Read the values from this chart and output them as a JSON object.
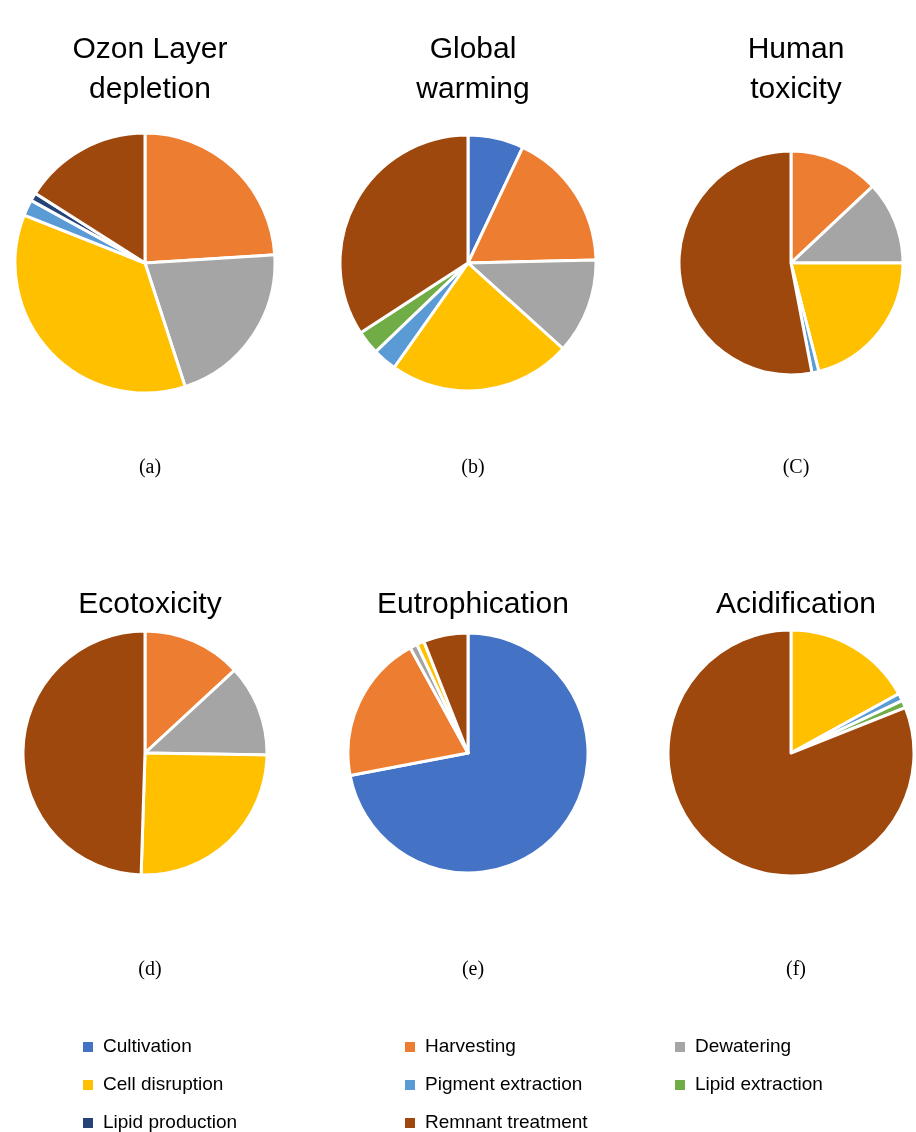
{
  "chart_data": [
    {
      "type": "pie",
      "title": "Ozon Layer depletion",
      "annotations": [
        "(a)"
      ],
      "categories": [
        "Cultivation",
        "Harvesting",
        "Dewatering",
        "Cell disruption",
        "Pigment extraction",
        "Lipid extraction",
        "Lipid production",
        "Remnant treatment"
      ],
      "values": [
        0,
        24,
        21,
        36,
        2,
        0,
        1,
        16
      ],
      "colors": [
        "#4472c4",
        "#ed7d31",
        "#a5a5a5",
        "#ffc000",
        "#5b9bd5",
        "#70ad47",
        "#264478",
        "#9e480e"
      ],
      "legend": "bottom"
    },
    {
      "type": "pie",
      "title": "Global warming",
      "annotations": [
        "(b)"
      ],
      "categories": [
        null,
        null,
        null,
        null,
        null,
        null,
        null,
        null
      ],
      "values": [
        7,
        17.5,
        12,
        23,
        3,
        3,
        null,
        34
      ],
      "colors": [
        "#4472c4",
        "#ed7d31",
        "#a5a5a5",
        "#ffc000",
        "#5b9bd5",
        "#70ad47",
        "#264478",
        "#9e480e"
      ]
    },
    {
      "type": "pie",
      "title": "Human toxicity",
      "annotations": [
        "(C)"
      ],
      "categories": [
        null,
        null,
        null,
        null,
        null,
        null,
        null,
        null
      ],
      "values": [
        0,
        13,
        12,
        21,
        1,
        0,
        0,
        53
      ],
      "colors": [
        "#4472c4",
        "#ed7d31",
        "#a5a5a5",
        "#ffc000",
        "#5b9bd5",
        "#70ad47",
        "#264478",
        "#9e480e"
      ]
    },
    {
      "type": "pie",
      "title": "Ecotoxicity",
      "annotations": [
        "(d)"
      ],
      "categories": [
        null,
        null,
        null,
        null,
        null,
        null,
        null,
        null
      ],
      "values": [
        0,
        13,
        12,
        25,
        null,
        null,
        0,
        49
      ],
      "colors": [
        "#4472c4",
        "#ed7d31",
        "#a5a5a5",
        "#ffc000",
        "#5b9bd5",
        "#70ad47",
        "#264478",
        "#9e480e"
      ]
    },
    {
      "type": "pie",
      "title": "Eutrophication",
      "annotations": [
        "(e)"
      ],
      "categories": [
        null,
        null,
        null,
        null,
        null,
        null,
        null,
        null
      ],
      "values": [
        72,
        20,
        1,
        1,
        0,
        0,
        0,
        6
      ],
      "colors": [
        "#4472c4",
        "#ed7d31",
        "#a5a5a5",
        "#ffc000",
        "#5b9bd5",
        "#70ad47",
        "#264478",
        "#9e480e"
      ]
    },
    {
      "type": "pie",
      "title": "Acidification",
      "annotations": [
        "(f)"
      ],
      "categories": [
        null,
        null,
        null,
        null,
        null,
        null,
        null,
        null
      ],
      "values": [
        0,
        0,
        0,
        17,
        1,
        1,
        0,
        81
      ],
      "colors": [
        "#4472c4",
        "#ed7d31",
        "#a5a5a5",
        "#ffc000",
        "#5b9bd5",
        "#70ad47",
        "#264478",
        "#9e480e"
      ]
    }
  ]
}
